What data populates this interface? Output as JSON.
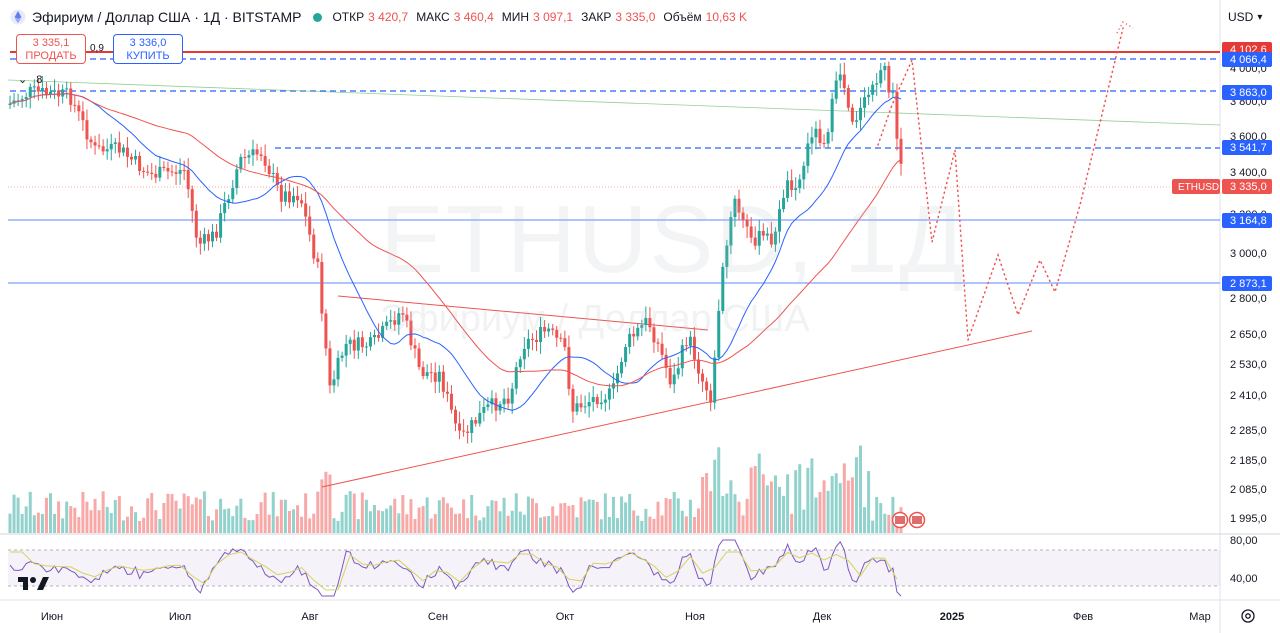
{
  "header": {
    "title": "Эфириум / Доллар США · 1Д · BITSTAMP",
    "open_label": "ОТКР",
    "open": "3 420,7",
    "high_label": "МАКС",
    "high": "3 460,4",
    "low_label": "МИН",
    "low": "3 097,1",
    "close_label": "ЗАКР",
    "close": "3 335,0",
    "volume_label": "Объём",
    "volume": "10,63 K"
  },
  "trade": {
    "sell_price": "3 335,1",
    "sell_label": "ПРОДАТЬ",
    "spread": "0,9",
    "buy_price": "3 336,0",
    "buy_label": "КУПИТЬ"
  },
  "indicators_count": "8",
  "currency": "USD",
  "watermark": {
    "symbol": "ETHUSD, 1Д",
    "description": "Эфириум / Доллар США"
  },
  "colors": {
    "up": "#26a69a",
    "down": "#ef5350",
    "ma_fast": "#2962ff",
    "ma_slow": "#ef5350",
    "level_line": "#2962ff",
    "resistance": "#e53935",
    "rsi_line": "#7e57c2",
    "rsi_ma": "#d4d45a"
  },
  "price_axis": [
    "4 000,0",
    "3 800,0",
    "3 600,0",
    "3 400,0",
    "3 200,0",
    "3 000,0",
    "2 800,0",
    "2 650,0",
    "2 530,0",
    "2 410,0",
    "2 285,0",
    "2 185,0",
    "2 085,0",
    "1 995,0"
  ],
  "price_tags": [
    {
      "text": "4 102,6",
      "color": "#e53935"
    },
    {
      "text": "4 066,4",
      "color": "#2962ff"
    },
    {
      "text": "3 863,0",
      "color": "#2962ff"
    },
    {
      "text": "3 541,7",
      "color": "#2962ff"
    },
    {
      "text": "3 335,0",
      "color": "#ef5350"
    },
    {
      "text": "3 164,8",
      "color": "#2962ff"
    },
    {
      "text": "2 873,1",
      "color": "#2962ff"
    }
  ],
  "symbol_tag": "ETHUSD",
  "rsi_axis": [
    "80,00",
    "40,00"
  ],
  "time_axis": [
    "Июн",
    "Июл",
    "Авг",
    "Сен",
    "Окт",
    "Ноя",
    "Дек",
    "2025",
    "Фев",
    "Мар"
  ]
}
